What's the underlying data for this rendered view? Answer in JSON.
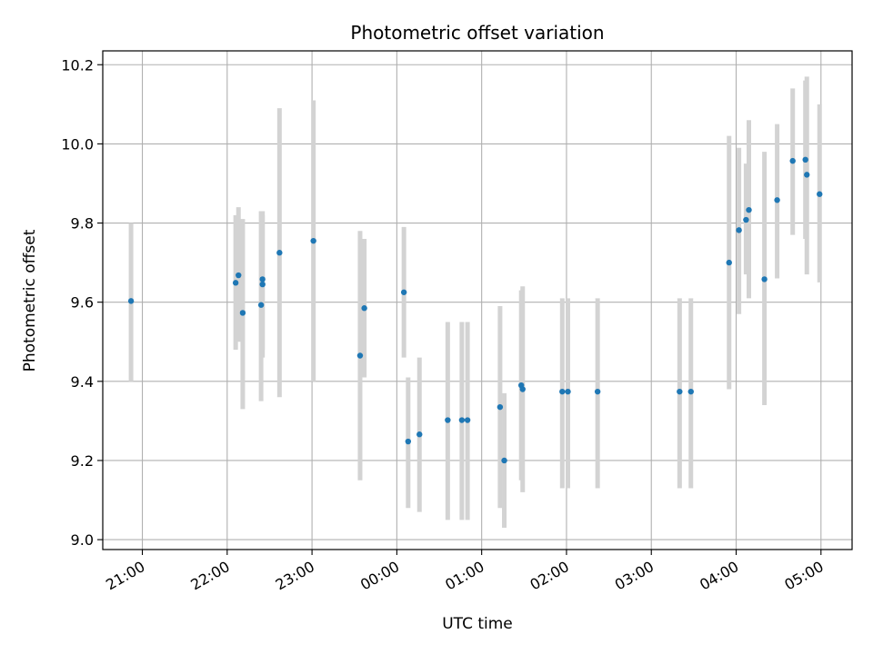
{
  "chart_data": {
    "type": "scatter",
    "title": "Photometric offset variation",
    "xlabel": "UTC time",
    "ylabel": "Photometric offset",
    "grid": true,
    "legend": "none",
    "xlim": [
      "20:32",
      "05:22"
    ],
    "ylim": [
      8.975,
      10.235
    ],
    "x_ticks": [
      "21:00",
      "22:00",
      "23:00",
      "00:00",
      "01:00",
      "02:00",
      "03:00",
      "04:00",
      "05:00"
    ],
    "y_ticks": [
      "9.0",
      "9.2",
      "9.4",
      "9.6",
      "9.8",
      "10.0",
      "10.2"
    ],
    "point_color": "#1f77b4",
    "errorbar_color": "#d3d3d3",
    "points": [
      {
        "t": "20:52",
        "y": 9.603,
        "lo": 9.4,
        "hi": 9.8
      },
      {
        "t": "22:06",
        "y": 9.649,
        "lo": 9.48,
        "hi": 9.82
      },
      {
        "t": "22:08",
        "y": 9.668,
        "lo": 9.5,
        "hi": 9.84
      },
      {
        "t": "22:11",
        "y": 9.573,
        "lo": 9.33,
        "hi": 9.81
      },
      {
        "t": "22:24",
        "y": 9.593,
        "lo": 9.35,
        "hi": 9.83
      },
      {
        "t": "22:25",
        "y": 9.645,
        "lo": 9.46,
        "hi": 9.82
      },
      {
        "t": "22:25",
        "y": 9.658,
        "lo": 9.48,
        "hi": 9.83
      },
      {
        "t": "22:37",
        "y": 9.725,
        "lo": 9.36,
        "hi": 10.09
      },
      {
        "t": "23:01",
        "y": 9.755,
        "lo": 9.4,
        "hi": 10.11
      },
      {
        "t": "23:34",
        "y": 9.465,
        "lo": 9.15,
        "hi": 9.78
      },
      {
        "t": "23:37",
        "y": 9.585,
        "lo": 9.41,
        "hi": 9.76
      },
      {
        "t": "00:05",
        "y": 9.625,
        "lo": 9.46,
        "hi": 9.79
      },
      {
        "t": "00:08",
        "y": 9.248,
        "lo": 9.08,
        "hi": 9.41
      },
      {
        "t": "00:16",
        "y": 9.266,
        "lo": 9.07,
        "hi": 9.46
      },
      {
        "t": "00:36",
        "y": 9.302,
        "lo": 9.05,
        "hi": 9.55
      },
      {
        "t": "00:46",
        "y": 9.302,
        "lo": 9.05,
        "hi": 9.55
      },
      {
        "t": "00:50",
        "y": 9.302,
        "lo": 9.05,
        "hi": 9.55
      },
      {
        "t": "01:13",
        "y": 9.335,
        "lo": 9.08,
        "hi": 9.59
      },
      {
        "t": "01:16",
        "y": 9.2,
        "lo": 9.03,
        "hi": 9.37
      },
      {
        "t": "01:28",
        "y": 9.39,
        "lo": 9.15,
        "hi": 9.63
      },
      {
        "t": "01:29",
        "y": 9.38,
        "lo": 9.12,
        "hi": 9.64
      },
      {
        "t": "01:57",
        "y": 9.374,
        "lo": 9.13,
        "hi": 9.61
      },
      {
        "t": "02:01",
        "y": 9.374,
        "lo": 9.13,
        "hi": 9.61
      },
      {
        "t": "02:22",
        "y": 9.374,
        "lo": 9.13,
        "hi": 9.61
      },
      {
        "t": "03:20",
        "y": 9.374,
        "lo": 9.13,
        "hi": 9.61
      },
      {
        "t": "03:28",
        "y": 9.374,
        "lo": 9.13,
        "hi": 9.61
      },
      {
        "t": "03:55",
        "y": 9.7,
        "lo": 9.38,
        "hi": 10.02
      },
      {
        "t": "04:02",
        "y": 9.782,
        "lo": 9.57,
        "hi": 9.99
      },
      {
        "t": "04:07",
        "y": 9.808,
        "lo": 9.67,
        "hi": 9.95
      },
      {
        "t": "04:09",
        "y": 9.833,
        "lo": 9.61,
        "hi": 10.06
      },
      {
        "t": "04:20",
        "y": 9.658,
        "lo": 9.34,
        "hi": 9.98
      },
      {
        "t": "04:29",
        "y": 9.858,
        "lo": 9.66,
        "hi": 10.05
      },
      {
        "t": "04:40",
        "y": 9.957,
        "lo": 9.77,
        "hi": 10.14
      },
      {
        "t": "04:49",
        "y": 9.96,
        "lo": 9.76,
        "hi": 10.16
      },
      {
        "t": "04:50",
        "y": 9.922,
        "lo": 9.67,
        "hi": 10.17
      },
      {
        "t": "04:59",
        "y": 9.873,
        "lo": 9.65,
        "hi": 10.1
      }
    ]
  }
}
